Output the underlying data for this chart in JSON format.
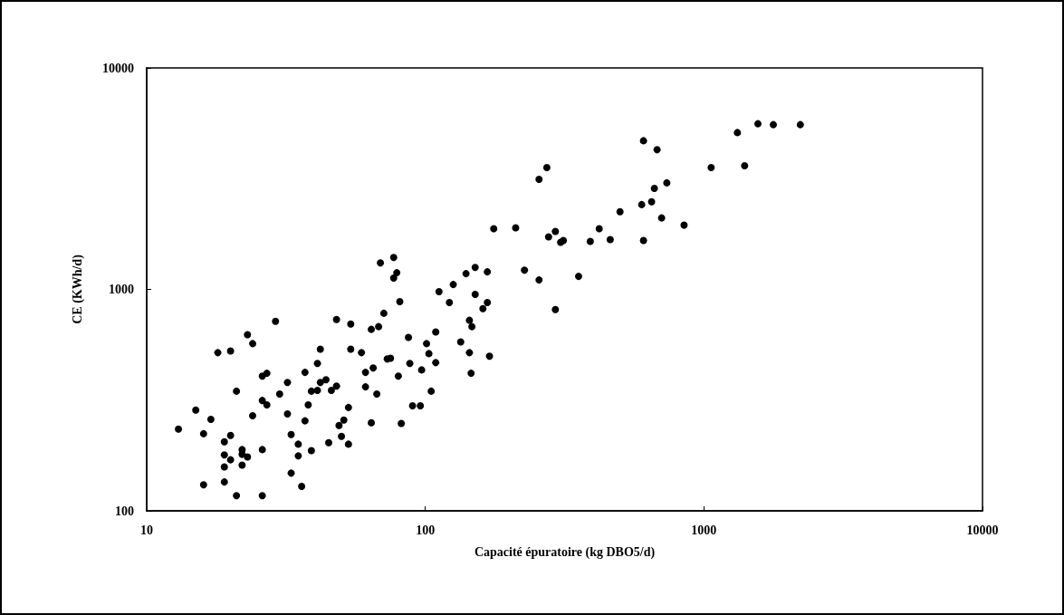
{
  "chart_data": {
    "type": "scatter",
    "xlabel": "Capacité épuratoire (kg DBO5/d)",
    "ylabel": "CE (KWh/d)",
    "log": "xy",
    "xlim": [
      10,
      10000
    ],
    "ylim": [
      100,
      10000
    ],
    "xticks": [
      10,
      100,
      1000,
      10000
    ],
    "yticks": [
      100,
      1000,
      10000
    ],
    "marker": "circle",
    "series": [
      {
        "color": "#000000",
        "x": [
          13,
          15,
          16,
          17,
          16,
          18,
          20,
          19,
          20,
          19,
          20,
          19,
          19,
          21,
          21,
          23,
          24,
          24,
          22,
          22,
          23,
          22,
          26,
          26,
          29,
          26,
          27,
          26,
          27,
          30,
          32,
          32,
          33,
          33,
          35,
          35,
          36,
          37,
          38,
          37,
          39,
          39,
          41,
          41,
          42,
          42,
          44,
          46,
          48,
          45,
          48,
          54,
          54,
          59,
          53,
          51,
          49,
          50,
          53,
          61,
          61,
          65,
          67,
          64,
          64,
          68,
          71,
          69,
          73,
          77,
          77,
          79,
          81,
          87,
          75,
          80,
          88,
          97,
          101,
          109,
          103,
          109,
          105,
          90,
          96,
          82,
          112,
          126,
          122,
          140,
          151,
          167,
          151,
          167,
          161,
          134,
          144,
          147,
          144,
          146,
          170,
          176,
          211,
          227,
          256,
          293,
          277,
          293,
          306,
          313,
          355,
          391,
          421,
          461,
          607,
          256,
          273,
          500,
          607,
          679,
          1062,
          1400,
          1319,
          1563,
          1775,
          2219,
          736,
          664,
          598,
          649,
          705,
          849
        ],
        "values": [
          234,
          285,
          223,
          259,
          131,
          518,
          527,
          205,
          219,
          179,
          170,
          158,
          135,
          117,
          347,
          624,
          569,
          269,
          189,
          180,
          175,
          161,
          189,
          117,
          718,
          406,
          418,
          315,
          301,
          337,
          380,
          274,
          221,
          148,
          200,
          177,
          129,
          422,
          301,
          255,
          187,
          347,
          350,
          463,
          537,
          380,
          391,
          350,
          366,
          203,
          731,
          698,
          537,
          518,
          293,
          257,
          243,
          217,
          200,
          422,
          363,
          442,
          337,
          250,
          660,
          679,
          780,
          1318,
          485,
          1393,
          1125,
          1189,
          881,
          607,
          489,
          406,
          463,
          433,
          569,
          642,
          513,
          467,
          347,
          298,
          298,
          248,
          977,
          1052,
          873,
          1178,
          1256,
          1200,
          950,
          873,
          818,
          579,
          725,
          679,
          518,
          418,
          499,
          1879,
          1897,
          1222,
          1103,
          811,
          1727,
          1828,
          1633,
          1663,
          1145,
          1648,
          1879,
          1679,
          1663,
          3141,
          3548,
          2244,
          4690,
          4276,
          3548,
          3614,
          5105,
          5598,
          5546,
          5546,
          3027,
          2858,
          2415,
          2488,
          2102,
          1950
        ]
      }
    ]
  }
}
